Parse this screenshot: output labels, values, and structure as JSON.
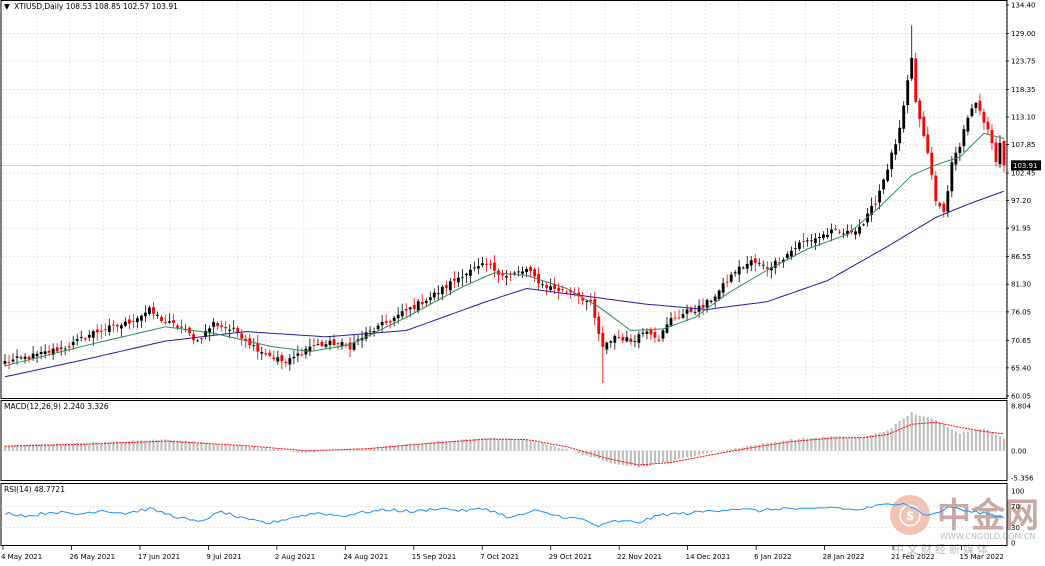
{
  "header": {
    "arrow": "▼",
    "title": "XTIUSD,Daily  108.53 108.85 102.57 103.91"
  },
  "price_tag": "103.91",
  "macd_label": "MACD(12,26,9) 2.240 3.326",
  "rsi_label": "RSI(14) 48.7721",
  "watermark": {
    "name": "中金网",
    "url": "WWW.CNGOLD.COM.CN",
    "sub": "中文财经新媒体"
  },
  "colors": {
    "bull": "#000000",
    "bear": "#ff0000",
    "ma_fast": "#2e8b57",
    "ma_slow": "#1e1ea8",
    "macd_signal": "#ff0000",
    "macd_hist": "#c0c0c0",
    "rsi": "#1e90ff",
    "grid": "#d4d4d4"
  },
  "chart_data": [
    {
      "type": "candlestick",
      "title": "XTIUSD,Daily",
      "ylim": [
        60.05,
        134.4
      ],
      "y_ticks": [
        "134.40",
        "129.00",
        "123.75",
        "118.35",
        "113.10",
        "107.85",
        "102.45",
        "97.20",
        "91.95",
        "86.55",
        "81.30",
        "76.05",
        "70.65",
        "65.40",
        "60.05"
      ],
      "x_ticks": [
        "4 May 2021",
        "26 May 2021",
        "17 Jun 2021",
        "9 Jul 2021",
        "2 Aug 2021",
        "24 Aug 2021",
        "15 Sep 2021",
        "7 Oct 2021",
        "29 Oct 2021",
        "22 Nov 2021",
        "14 Dec 2021",
        "6 Jan 2022",
        "28 Jan 2022",
        "21 Feb 2022",
        "15 Mar 2022"
      ],
      "last": {
        "open": 108.53,
        "high": 108.85,
        "low": 102.57,
        "close": 103.91
      },
      "close_path": [
        [
          0,
          66.5
        ],
        [
          8,
          67.8
        ],
        [
          16,
          69.6
        ],
        [
          22,
          72.1
        ],
        [
          30,
          73.8
        ],
        [
          36,
          76.3
        ],
        [
          40,
          74.1
        ],
        [
          44,
          73.0
        ],
        [
          48,
          70.5
        ],
        [
          52,
          73.9
        ],
        [
          58,
          72.2
        ],
        [
          62,
          69.5
        ],
        [
          66,
          67.8
        ],
        [
          70,
          66.3
        ],
        [
          76,
          69.5
        ],
        [
          82,
          70.1
        ],
        [
          86,
          69.5
        ],
        [
          90,
          71.8
        ],
        [
          96,
          74.4
        ],
        [
          102,
          77.1
        ],
        [
          108,
          79.8
        ],
        [
          114,
          83.2
        ],
        [
          120,
          85.0
        ],
        [
          125,
          82.8
        ],
        [
          130,
          84.0
        ],
        [
          134,
          81.2
        ],
        [
          138,
          80.2
        ],
        [
          142,
          79.8
        ],
        [
          146,
          77.5
        ],
        [
          149,
          69.0
        ],
        [
          152,
          71.5
        ],
        [
          156,
          70.5
        ],
        [
          160,
          72.8
        ],
        [
          163,
          71.0
        ],
        [
          166,
          74.6
        ],
        [
          170,
          76.0
        ],
        [
          174,
          77.0
        ],
        [
          178,
          80.0
        ],
        [
          182,
          83.8
        ],
        [
          186,
          85.6
        ],
        [
          190,
          84.5
        ],
        [
          194,
          86.4
        ],
        [
          198,
          89.0
        ],
        [
          202,
          90.1
        ],
        [
          206,
          91.2
        ],
        [
          210,
          91.0
        ],
        [
          214,
          92.8
        ],
        [
          217,
          97.0
        ],
        [
          220,
          103.5
        ],
        [
          223,
          110.5
        ],
        [
          225,
          119.5
        ],
        [
          226,
          124.0
        ],
        [
          227,
          116.0
        ],
        [
          229,
          109.0
        ],
        [
          230,
          106.5
        ],
        [
          232,
          97.0
        ],
        [
          234,
          95.0
        ],
        [
          236,
          104.0
        ],
        [
          238,
          108.0
        ],
        [
          240,
          113.2
        ],
        [
          242,
          115.5
        ],
        [
          244,
          112.0
        ],
        [
          246,
          108.5
        ],
        [
          247,
          105.0
        ],
        [
          248,
          108.5
        ],
        [
          249,
          103.91
        ]
      ],
      "ma_fast": [
        [
          0,
          65.8
        ],
        [
          22,
          70.0
        ],
        [
          40,
          73.2
        ],
        [
          52,
          72.0
        ],
        [
          66,
          69.5
        ],
        [
          76,
          68.5
        ],
        [
          86,
          69.8
        ],
        [
          100,
          75.0
        ],
        [
          114,
          80.8
        ],
        [
          122,
          83.5
        ],
        [
          130,
          83.0
        ],
        [
          140,
          80.5
        ],
        [
          148,
          77.0
        ],
        [
          156,
          72.5
        ],
        [
          164,
          72.8
        ],
        [
          172,
          75.0
        ],
        [
          180,
          79.5
        ],
        [
          190,
          84.0
        ],
        [
          200,
          88.0
        ],
        [
          210,
          90.8
        ],
        [
          218,
          96.0
        ],
        [
          226,
          102.0
        ],
        [
          232,
          104.0
        ],
        [
          238,
          105.5
        ],
        [
          244,
          110.0
        ],
        [
          249,
          109.0
        ]
      ],
      "ma_slow": [
        [
          0,
          63.7
        ],
        [
          20,
          67.0
        ],
        [
          40,
          70.5
        ],
        [
          60,
          72.3
        ],
        [
          80,
          71.3
        ],
        [
          100,
          72.5
        ],
        [
          120,
          78.0
        ],
        [
          130,
          80.5
        ],
        [
          145,
          79.0
        ],
        [
          160,
          77.5
        ],
        [
          175,
          76.5
        ],
        [
          190,
          78.0
        ],
        [
          205,
          82.0
        ],
        [
          220,
          88.5
        ],
        [
          232,
          94.0
        ],
        [
          240,
          96.5
        ],
        [
          249,
          99.0
        ]
      ]
    },
    {
      "type": "macd",
      "params": "12,26,9",
      "macd": 2.24,
      "signal": 3.326,
      "y_ticks": [
        "8.804",
        "0.00",
        "-5.356"
      ],
      "ylim": [
        -5.356,
        8.804
      ],
      "histogram_path": [
        [
          0,
          1.0
        ],
        [
          20,
          1.5
        ],
        [
          40,
          2.2
        ],
        [
          60,
          0.9
        ],
        [
          75,
          -0.4
        ],
        [
          90,
          0.5
        ],
        [
          105,
          1.6
        ],
        [
          120,
          2.5
        ],
        [
          130,
          2.1
        ],
        [
          140,
          0.3
        ],
        [
          150,
          -2.2
        ],
        [
          158,
          -3.2
        ],
        [
          166,
          -2.0
        ],
        [
          176,
          -0.3
        ],
        [
          186,
          1.0
        ],
        [
          196,
          2.2
        ],
        [
          206,
          2.8
        ],
        [
          214,
          2.6
        ],
        [
          220,
          4.0
        ],
        [
          226,
          7.5
        ],
        [
          232,
          6.0
        ],
        [
          238,
          3.5
        ],
        [
          244,
          4.5
        ],
        [
          249,
          2.24
        ]
      ],
      "signal_path": [
        [
          0,
          0.9
        ],
        [
          20,
          1.3
        ],
        [
          40,
          1.9
        ],
        [
          60,
          1.0
        ],
        [
          75,
          0.0
        ],
        [
          90,
          0.4
        ],
        [
          105,
          1.4
        ],
        [
          120,
          2.3
        ],
        [
          130,
          2.2
        ],
        [
          140,
          0.8
        ],
        [
          150,
          -1.5
        ],
        [
          158,
          -2.8
        ],
        [
          166,
          -2.3
        ],
        [
          176,
          -0.8
        ],
        [
          186,
          0.6
        ],
        [
          196,
          1.8
        ],
        [
          206,
          2.5
        ],
        [
          214,
          2.6
        ],
        [
          220,
          3.2
        ],
        [
          226,
          5.2
        ],
        [
          232,
          5.6
        ],
        [
          238,
          4.6
        ],
        [
          244,
          3.8
        ],
        [
          249,
          3.326
        ]
      ]
    },
    {
      "type": "rsi",
      "period": 14,
      "value": 48.7721,
      "y_ticks": [
        "100",
        "70",
        "30",
        "0"
      ],
      "ylim": [
        0,
        100
      ],
      "path": [
        [
          0,
          58
        ],
        [
          6,
          52
        ],
        [
          12,
          60
        ],
        [
          18,
          55
        ],
        [
          24,
          63
        ],
        [
          30,
          57
        ],
        [
          36,
          66
        ],
        [
          42,
          52
        ],
        [
          48,
          40
        ],
        [
          54,
          60
        ],
        [
          60,
          45
        ],
        [
          66,
          38
        ],
        [
          72,
          50
        ],
        [
          78,
          58
        ],
        [
          84,
          52
        ],
        [
          90,
          60
        ],
        [
          96,
          64
        ],
        [
          102,
          60
        ],
        [
          108,
          67
        ],
        [
          114,
          62
        ],
        [
          120,
          66
        ],
        [
          126,
          48
        ],
        [
          132,
          62
        ],
        [
          138,
          52
        ],
        [
          144,
          45
        ],
        [
          148,
          32
        ],
        [
          152,
          42
        ],
        [
          158,
          40
        ],
        [
          164,
          55
        ],
        [
          170,
          57
        ],
        [
          176,
          62
        ],
        [
          182,
          66
        ],
        [
          188,
          62
        ],
        [
          194,
          67
        ],
        [
          200,
          64
        ],
        [
          206,
          69
        ],
        [
          212,
          63
        ],
        [
          218,
          72
        ],
        [
          224,
          78
        ],
        [
          230,
          52
        ],
        [
          236,
          70
        ],
        [
          240,
          60
        ],
        [
          244,
          58
        ],
        [
          249,
          48.77
        ]
      ]
    }
  ]
}
